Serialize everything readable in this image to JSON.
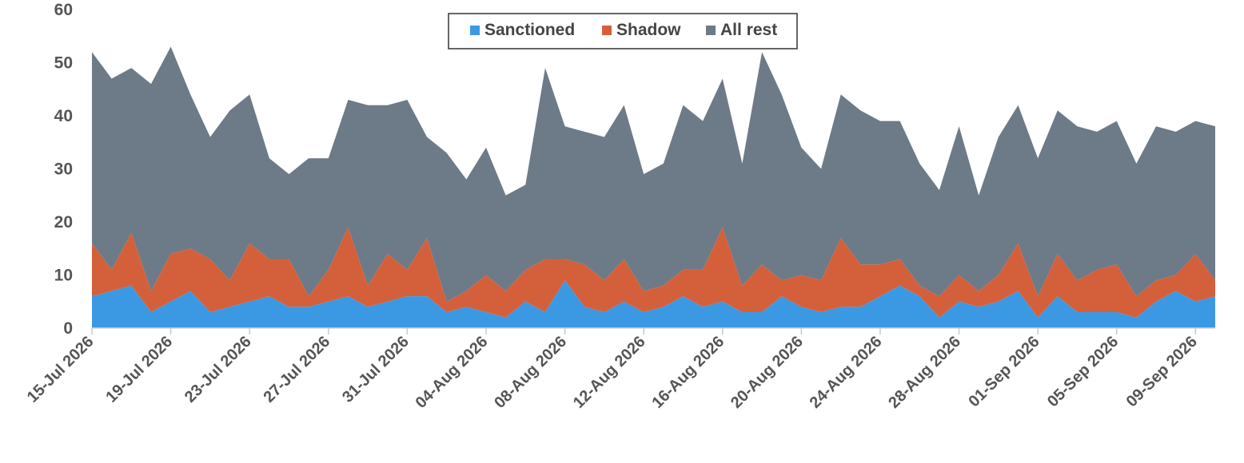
{
  "chart_data": {
    "type": "area",
    "stacked": true,
    "legend_position": "top-center",
    "grid": false,
    "ylim": [
      0,
      60
    ],
    "yticks": [
      0,
      10,
      20,
      30,
      40,
      50,
      60
    ],
    "x_tick_labels": [
      "15-Jul 2026",
      "19-Jul 2026",
      "23-Jul 2026",
      "27-Jul 2026",
      "31-Jul 2026",
      "04-Aug 2026",
      "08-Aug 2026",
      "12-Aug 2026",
      "16-Aug 2026",
      "20-Aug 2026",
      "24-Aug 2026",
      "28-Aug 2026",
      "01-Sep 2026",
      "05-Sep 2026",
      "09-Sep 2026"
    ],
    "x": [
      "2026-07-15",
      "2026-07-16",
      "2026-07-17",
      "2026-07-18",
      "2026-07-19",
      "2026-07-20",
      "2026-07-21",
      "2026-07-22",
      "2026-07-23",
      "2026-07-24",
      "2026-07-25",
      "2026-07-26",
      "2026-07-27",
      "2026-07-28",
      "2026-07-29",
      "2026-07-30",
      "2026-07-31",
      "2026-08-01",
      "2026-08-02",
      "2026-08-03",
      "2026-08-04",
      "2026-08-05",
      "2026-08-06",
      "2026-08-07",
      "2026-08-08",
      "2026-08-09",
      "2026-08-10",
      "2026-08-11",
      "2026-08-12",
      "2026-08-13",
      "2026-08-14",
      "2026-08-15",
      "2026-08-16",
      "2026-08-17",
      "2026-08-18",
      "2026-08-19",
      "2026-08-20",
      "2026-08-21",
      "2026-08-22",
      "2026-08-23",
      "2026-08-24",
      "2026-08-25",
      "2026-08-26",
      "2026-08-27",
      "2026-08-28",
      "2026-08-29",
      "2026-08-30",
      "2026-08-31",
      "2026-09-01",
      "2026-09-02",
      "2026-09-03",
      "2026-09-04",
      "2026-09-05",
      "2026-09-06",
      "2026-09-07",
      "2026-09-08",
      "2026-09-09",
      "2026-09-10"
    ],
    "series": [
      {
        "name": "Sanctioned",
        "color": "#3b99e3",
        "values": [
          6,
          7,
          8,
          3,
          5,
          7,
          3,
          4,
          5,
          6,
          4,
          4,
          5,
          6,
          4,
          5,
          6,
          6,
          3,
          4,
          3,
          2,
          5,
          3,
          9,
          4,
          3,
          5,
          3,
          4,
          6,
          4,
          5,
          3,
          3,
          6,
          4,
          3,
          4,
          4,
          6,
          8,
          6,
          2,
          5,
          4,
          5,
          7,
          2,
          6,
          3,
          3,
          3,
          2,
          5,
          7,
          5,
          6
        ]
      },
      {
        "name": "Shadow",
        "color": "#d4603b",
        "values": [
          10,
          4,
          10,
          4,
          9,
          8,
          10,
          5,
          11,
          7,
          9,
          2,
          6,
          13,
          4,
          9,
          5,
          11,
          2,
          3,
          7,
          5,
          6,
          10,
          4,
          8,
          6,
          8,
          4,
          4,
          5,
          7,
          14,
          5,
          9,
          3,
          6,
          6,
          13,
          8,
          6,
          5,
          2,
          4,
          5,
          3,
          5,
          9,
          4,
          8,
          6,
          8,
          9,
          4,
          4,
          3,
          9,
          3
        ]
      },
      {
        "name": "All rest",
        "color": "#6d7a87",
        "values": [
          36,
          36,
          31,
          39,
          39,
          29,
          23,
          32,
          28,
          19,
          16,
          26,
          21,
          24,
          34,
          28,
          32,
          19,
          28,
          21,
          24,
          18,
          16,
          36,
          25,
          25,
          27,
          29,
          22,
          23,
          31,
          28,
          28,
          23,
          40,
          35,
          24,
          21,
          27,
          29,
          27,
          26,
          23,
          20,
          28,
          18,
          26,
          26,
          26,
          27,
          29,
          26,
          27,
          25,
          29,
          27,
          25,
          29
        ]
      }
    ]
  }
}
